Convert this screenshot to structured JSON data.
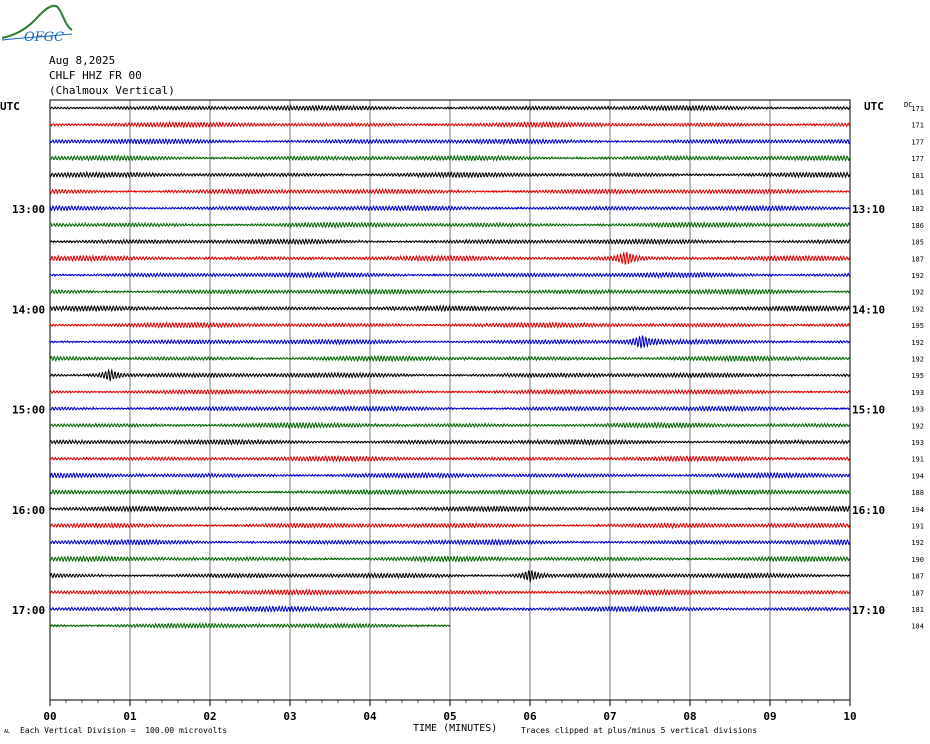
{
  "logo": {
    "text": "OFGC",
    "icon": "ofgc-logo-icon",
    "color": "#2e7d32"
  },
  "header": {
    "date": "Aug 8,2025",
    "station": "CHLF HHZ FR 00",
    "location": "(Chalmoux Vertical)"
  },
  "left_axis_title": "UTC",
  "right_axis_title": "UTC",
  "dc_title": "DC",
  "footer": {
    "scale": "Each Vertical Division =  100.00 microvolts",
    "clip": "Traces clipped at plus/minus 5 vertical divisions",
    "corner": "AL"
  },
  "chart_data": {
    "type": "line",
    "title": "CHLF HHZ FR 00 (Chalmoux Vertical)",
    "xlabel": "TIME (MINUTES)",
    "xlim": [
      0,
      10
    ],
    "x_ticks": [
      "00",
      "01",
      "02",
      "03",
      "04",
      "05",
      "06",
      "07",
      "08",
      "09",
      "10"
    ],
    "trace_colors": [
      "#000000",
      "#dd0000",
      "#0000cc",
      "#006600"
    ],
    "left_time_labels": [
      {
        "row": 6,
        "label": "13:00"
      },
      {
        "row": 12,
        "label": "14:00"
      },
      {
        "row": 18,
        "label": "15:00"
      },
      {
        "row": 24,
        "label": "16:00"
      },
      {
        "row": 30,
        "label": "17:00"
      }
    ],
    "right_time_labels": [
      {
        "row": 6,
        "label": "13:10"
      },
      {
        "row": 12,
        "label": "14:10"
      },
      {
        "row": 18,
        "label": "15:10"
      },
      {
        "row": 24,
        "label": "16:10"
      },
      {
        "row": 30,
        "label": "17:10"
      }
    ],
    "dc_offsets": [
      171,
      171,
      177,
      177,
      181,
      181,
      182,
      186,
      185,
      187,
      192,
      192,
      192,
      195,
      192,
      192,
      195,
      193,
      193,
      192,
      193,
      191,
      194,
      188,
      194,
      191,
      192,
      190,
      187,
      187,
      181,
      184
    ],
    "last_trace_end_minute": 5.0,
    "events": [
      {
        "row": 9,
        "minute": 7.2
      },
      {
        "row": 14,
        "minute": 7.4
      },
      {
        "row": 16,
        "minute": 0.75
      },
      {
        "row": 28,
        "minute": 6.0
      }
    ],
    "grid": true
  }
}
